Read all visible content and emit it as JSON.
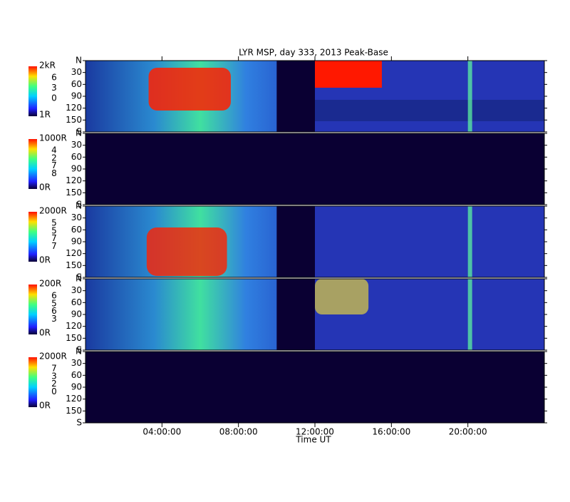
{
  "title": "LYR MSP, day 333, 2013 Peak-Base",
  "xlabel": "Time UT",
  "xlim": [
    0,
    24
  ],
  "xticks": [
    {
      "value": 4,
      "label": "04:00:00"
    },
    {
      "value": 8,
      "label": "08:00:00"
    },
    {
      "value": 12,
      "label": "12:00:00"
    },
    {
      "value": 16,
      "label": "16:00:00"
    },
    {
      "value": 20,
      "label": "20:00:00"
    }
  ],
  "panels": [
    {
      "ylim": [
        0,
        180
      ],
      "yticks": [
        {
          "value": 0,
          "label": "N"
        },
        30,
        60,
        90,
        120,
        150,
        {
          "value": 180,
          "label": "S"
        }
      ],
      "colorbar": {
        "max": "2kR",
        "mid": [
          "6",
          "3",
          "0"
        ],
        "min": "1R"
      }
    },
    {
      "ylim": [
        0,
        180
      ],
      "yticks": [
        {
          "value": 0,
          "label": "N"
        },
        30,
        60,
        90,
        120,
        150,
        {
          "value": 180,
          "label": "S"
        }
      ],
      "colorbar": {
        "max": "1000R",
        "mid": [
          "4",
          "2",
          "7",
          "8"
        ],
        "min": "0R"
      }
    },
    {
      "ylim": [
        0,
        180
      ],
      "yticks": [
        {
          "value": 0,
          "label": "N"
        },
        30,
        60,
        90,
        120,
        150,
        {
          "value": 180,
          "label": "S"
        }
      ],
      "colorbar": {
        "max": "2000R",
        "mid": [
          "5",
          "5",
          "7",
          "7"
        ],
        "min": "0R"
      }
    },
    {
      "ylim": [
        0,
        180
      ],
      "yticks": [
        {
          "value": 0,
          "label": "N"
        },
        30,
        60,
        90,
        120,
        150,
        {
          "value": 180,
          "label": "S"
        }
      ],
      "colorbar": {
        "max": "200R",
        "mid": [
          "6",
          "5",
          "6",
          "3"
        ],
        "min": "0R"
      }
    },
    {
      "ylim": [
        0,
        180
      ],
      "yticks": [
        {
          "value": 0,
          "label": "N"
        },
        30,
        60,
        90,
        120,
        150,
        {
          "value": 180,
          "label": "S"
        }
      ],
      "colorbar": {
        "max": "2000R",
        "mid": [
          "7",
          "3",
          "2",
          "0"
        ],
        "min": "0R"
      }
    }
  ]
}
